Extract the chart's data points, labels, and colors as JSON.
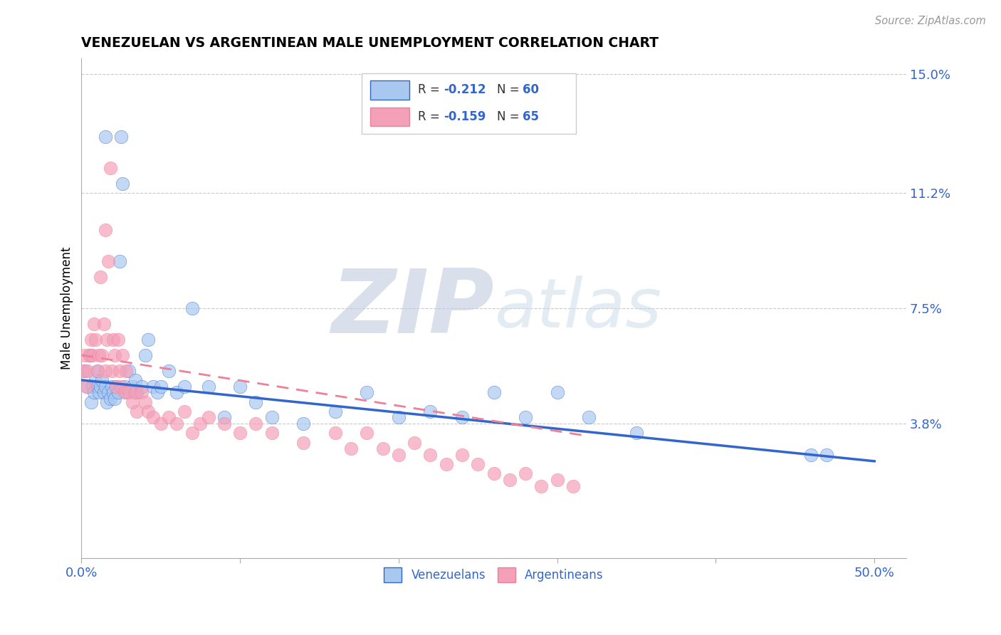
{
  "title": "VENEZUELAN VS ARGENTINEAN MALE UNEMPLOYMENT CORRELATION CHART",
  "source": "Source: ZipAtlas.com",
  "ylabel": "Male Unemployment",
  "watermark_zip": "ZIP",
  "watermark_atlas": "atlas",
  "xlim": [
    0.0,
    0.52
  ],
  "ylim": [
    -0.005,
    0.155
  ],
  "ytick_positions": [
    0.038,
    0.075,
    0.112,
    0.15
  ],
  "ytick_labels": [
    "3.8%",
    "7.5%",
    "11.2%",
    "15.0%"
  ],
  "legend_label1": "Venezuelans",
  "legend_label2": "Argentineans",
  "R1": "-0.212",
  "N1": "60",
  "R2": "-0.159",
  "N2": "65",
  "color_blue": "#A8C8F0",
  "color_pink": "#F4A0B8",
  "trend_blue": "#3366CC",
  "trend_pink": "#EE8099",
  "grid_color": "#C8C8D8",
  "venezuelan_x": [
    0.002,
    0.004,
    0.005,
    0.006,
    0.007,
    0.008,
    0.009,
    0.01,
    0.01,
    0.011,
    0.012,
    0.013,
    0.014,
    0.015,
    0.015,
    0.016,
    0.017,
    0.018,
    0.019,
    0.02,
    0.021,
    0.022,
    0.023,
    0.024,
    0.025,
    0.026,
    0.027,
    0.028,
    0.03,
    0.032,
    0.034,
    0.035,
    0.038,
    0.04,
    0.042,
    0.045,
    0.048,
    0.05,
    0.055,
    0.06,
    0.065,
    0.07,
    0.08,
    0.09,
    0.1,
    0.11,
    0.12,
    0.14,
    0.16,
    0.18,
    0.2,
    0.22,
    0.24,
    0.26,
    0.28,
    0.3,
    0.32,
    0.35,
    0.46,
    0.47
  ],
  "venezuelan_y": [
    0.055,
    0.05,
    0.06,
    0.045,
    0.05,
    0.048,
    0.052,
    0.05,
    0.055,
    0.048,
    0.05,
    0.052,
    0.048,
    0.13,
    0.05,
    0.045,
    0.048,
    0.046,
    0.05,
    0.048,
    0.046,
    0.05,
    0.048,
    0.09,
    0.13,
    0.115,
    0.05,
    0.048,
    0.055,
    0.05,
    0.052,
    0.048,
    0.05,
    0.06,
    0.065,
    0.05,
    0.048,
    0.05,
    0.055,
    0.048,
    0.05,
    0.075,
    0.05,
    0.04,
    0.05,
    0.045,
    0.04,
    0.038,
    0.042,
    0.048,
    0.04,
    0.042,
    0.04,
    0.048,
    0.04,
    0.048,
    0.04,
    0.035,
    0.028,
    0.028
  ],
  "argentinean_x": [
    0.001,
    0.002,
    0.003,
    0.004,
    0.005,
    0.006,
    0.007,
    0.008,
    0.009,
    0.01,
    0.011,
    0.012,
    0.013,
    0.014,
    0.015,
    0.015,
    0.016,
    0.017,
    0.018,
    0.019,
    0.02,
    0.021,
    0.022,
    0.023,
    0.024,
    0.025,
    0.026,
    0.027,
    0.028,
    0.03,
    0.032,
    0.034,
    0.035,
    0.038,
    0.04,
    0.042,
    0.045,
    0.05,
    0.055,
    0.06,
    0.065,
    0.07,
    0.075,
    0.08,
    0.09,
    0.1,
    0.11,
    0.12,
    0.14,
    0.16,
    0.17,
    0.18,
    0.19,
    0.2,
    0.21,
    0.22,
    0.23,
    0.24,
    0.25,
    0.26,
    0.27,
    0.28,
    0.29,
    0.3,
    0.31
  ],
  "argentinean_y": [
    0.055,
    0.06,
    0.05,
    0.055,
    0.06,
    0.065,
    0.06,
    0.07,
    0.065,
    0.055,
    0.06,
    0.085,
    0.06,
    0.07,
    0.1,
    0.055,
    0.065,
    0.09,
    0.12,
    0.055,
    0.065,
    0.06,
    0.05,
    0.065,
    0.055,
    0.05,
    0.06,
    0.048,
    0.055,
    0.048,
    0.045,
    0.048,
    0.042,
    0.048,
    0.045,
    0.042,
    0.04,
    0.038,
    0.04,
    0.038,
    0.042,
    0.035,
    0.038,
    0.04,
    0.038,
    0.035,
    0.038,
    0.035,
    0.032,
    0.035,
    0.03,
    0.035,
    0.03,
    0.028,
    0.032,
    0.028,
    0.025,
    0.028,
    0.025,
    0.022,
    0.02,
    0.022,
    0.018,
    0.02,
    0.018
  ],
  "trend_vz_x0": 0.0,
  "trend_vz_y0": 0.052,
  "trend_vz_x1": 0.5,
  "trend_vz_y1": 0.026,
  "trend_ar_x0": 0.0,
  "trend_ar_y0": 0.06,
  "trend_ar_x1": 0.32,
  "trend_ar_y1": 0.034
}
